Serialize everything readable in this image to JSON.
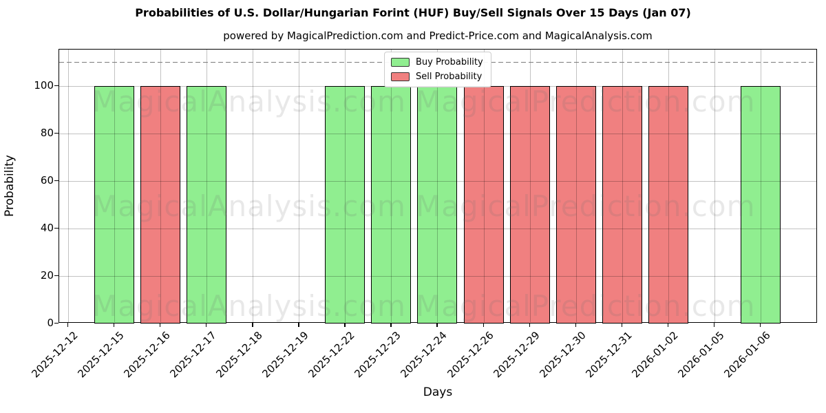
{
  "figure": {
    "title": "Probabilities of U.S. Dollar/Hungarian Forint (HUF) Buy/Sell Signals Over 15 Days (Jan 07)",
    "subtitle": "powered by MagicalPrediction.com and Predict-Price.com and MagicalAnalysis.com"
  },
  "watermarks": {
    "analysis": "MagicalAnalysis.com",
    "prediction": "MagicalPrediction.com"
  },
  "colors": {
    "buy": "#90EE90",
    "sell": "#F08080",
    "bar_edge": "#000000",
    "dashed_line": "#7a7a7a",
    "grid": "#c8c8c8"
  },
  "chart_data": {
    "type": "bar",
    "title": "Probabilities of U.S. Dollar/Hungarian Forint (HUF) Buy/Sell Signals Over 15 Days (Jan 07)",
    "subtitle": "powered by MagicalPrediction.com and Predict-Price.com and MagicalAnalysis.com",
    "xlabel": "Days",
    "ylabel": "Probability",
    "ylim": [
      0,
      115
    ],
    "yticks": [
      0,
      20,
      40,
      60,
      80,
      100
    ],
    "dashed_threshold_y": 110,
    "grid": true,
    "legend_position": "top center",
    "categories": [
      "2025-12-12",
      "2025-12-15",
      "2025-12-16",
      "2025-12-17",
      "2025-12-18",
      "2025-12-19",
      "2025-12-22",
      "2025-12-23",
      "2025-12-24",
      "2025-12-26",
      "2025-12-29",
      "2025-12-30",
      "2025-12-31",
      "2026-01-02",
      "2026-01-05",
      "2026-01-06"
    ],
    "series": [
      {
        "name": "Buy Probability",
        "color": "#90EE90",
        "values": [
          null,
          100,
          null,
          100,
          null,
          null,
          100,
          100,
          100,
          null,
          null,
          null,
          null,
          null,
          null,
          100
        ]
      },
      {
        "name": "Sell Probability",
        "color": "#F08080",
        "values": [
          null,
          null,
          100,
          null,
          null,
          null,
          null,
          null,
          null,
          100,
          100,
          100,
          100,
          100,
          null,
          null
        ]
      }
    ]
  }
}
